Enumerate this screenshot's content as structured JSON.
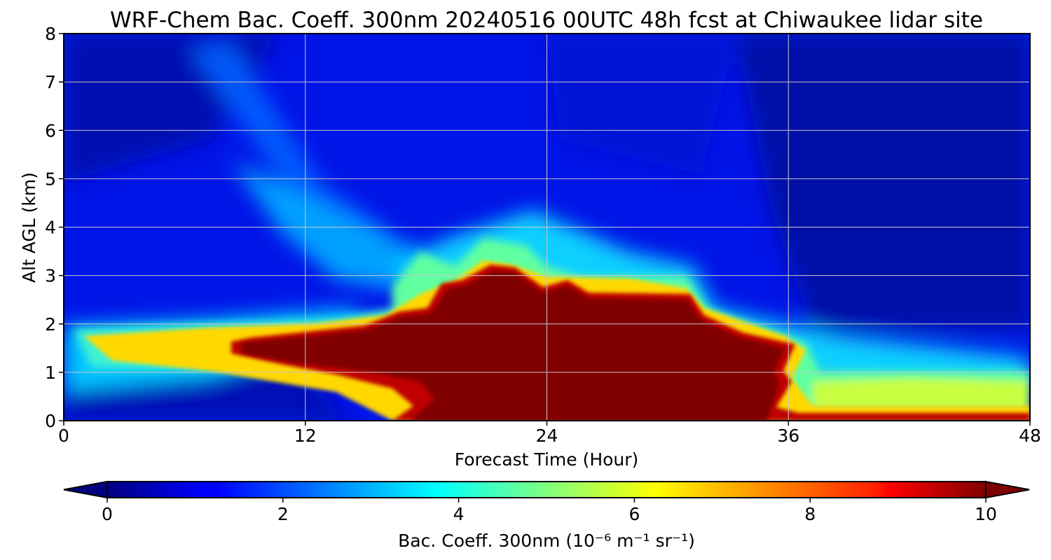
{
  "chart_data": {
    "type": "heatmap",
    "title": "WRF-Chem Bac. Coeff. 300nm  20240516 00UTC 48h fcst at Chiwaukee lidar site",
    "xlabel": "Forecast Time (Hour)",
    "ylabel": "Alt AGL (km)",
    "xlim": [
      0,
      48
    ],
    "ylim": [
      0,
      8
    ],
    "x_ticks": [
      "0",
      "12",
      "24",
      "36",
      "48"
    ],
    "y_ticks": [
      "0",
      "1",
      "2",
      "3",
      "4",
      "5",
      "6",
      "7",
      "8"
    ],
    "grid": true,
    "colorbar": {
      "label": "Bac. Coeff. 300nm  (10⁻⁶ m⁻¹ sr⁻¹)",
      "range": [
        0,
        10
      ],
      "ticks": [
        "0",
        "2",
        "4",
        "6",
        "8",
        "10"
      ],
      "extend": "both",
      "colormap": "jet"
    },
    "description_values": {
      "background_aloft": 1.3,
      "plume_core_max": 10,
      "aloft_plume_hours": [
        7,
        22
      ],
      "aloft_plume_km": [
        3.5,
        7.5
      ],
      "dense_layer_start_hour": 1,
      "dense_layer_end_hour": 48
    }
  }
}
